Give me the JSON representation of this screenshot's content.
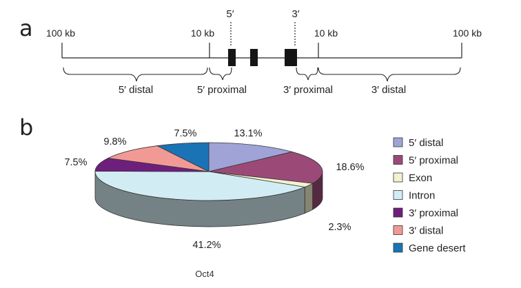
{
  "panel_a": {
    "letter": "a",
    "tick_labels": [
      "100 kb",
      "10 kb",
      "10 kb",
      "100 kb"
    ],
    "end_labels": [
      "5′",
      "3′"
    ],
    "region_labels": [
      "5′ distal",
      "5′ proximal",
      "3′ proximal",
      "3′ distal"
    ]
  },
  "panel_b": {
    "letter": "b"
  },
  "chart_data": {
    "type": "pie",
    "title": "",
    "caption": "Oct4",
    "unit": "%",
    "start_direction": "clockwise from top",
    "slices": [
      {
        "name": "5′ distal",
        "value": 13.1,
        "label": "13.1%",
        "color": "#9fa3d6"
      },
      {
        "name": "5′ proximal",
        "value": 18.6,
        "label": "18.6%",
        "color": "#9b4a78"
      },
      {
        "name": "Exon",
        "value": 2.3,
        "label": "2.3%",
        "color": "#f4f1cf"
      },
      {
        "name": "Intron",
        "value": 41.2,
        "label": "41.2%",
        "color": "#d2ecf3"
      },
      {
        "name": "3′ proximal",
        "value": 7.5,
        "label": "7.5%",
        "color": "#6e1f7c"
      },
      {
        "name": "3′ distal",
        "value": 9.8,
        "label": "9.8%",
        "color": "#f19a95"
      },
      {
        "name": "Gene desert",
        "value": 7.5,
        "label": "7.5%",
        "color": "#1a73b5"
      }
    ],
    "legend_position": "right"
  }
}
